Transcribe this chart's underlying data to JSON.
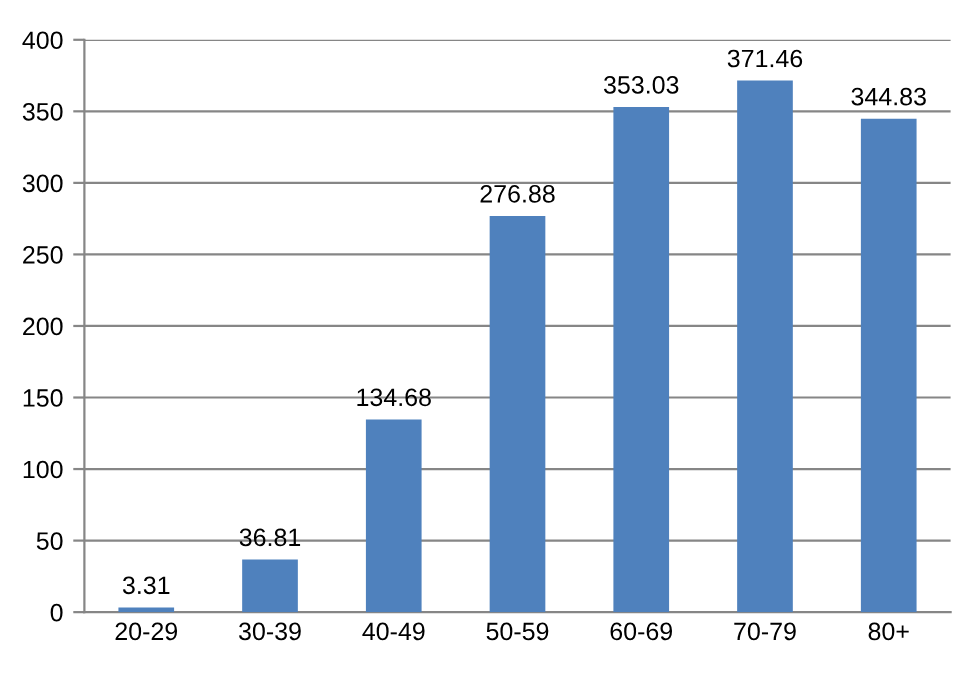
{
  "chart_data": {
    "type": "bar",
    "categories": [
      "20-29",
      "30-39",
      "40-49",
      "50-59",
      "60-69",
      "70-79",
      "80+"
    ],
    "values": [
      3.31,
      36.81,
      134.68,
      276.88,
      353.03,
      371.46,
      344.83
    ],
    "color": "#4f81bd",
    "ylim": [
      0,
      400
    ],
    "yticks": [
      0,
      50,
      100,
      150,
      200,
      250,
      300,
      350,
      400
    ],
    "grid": "y",
    "data_labels": true,
    "legend": false
  }
}
